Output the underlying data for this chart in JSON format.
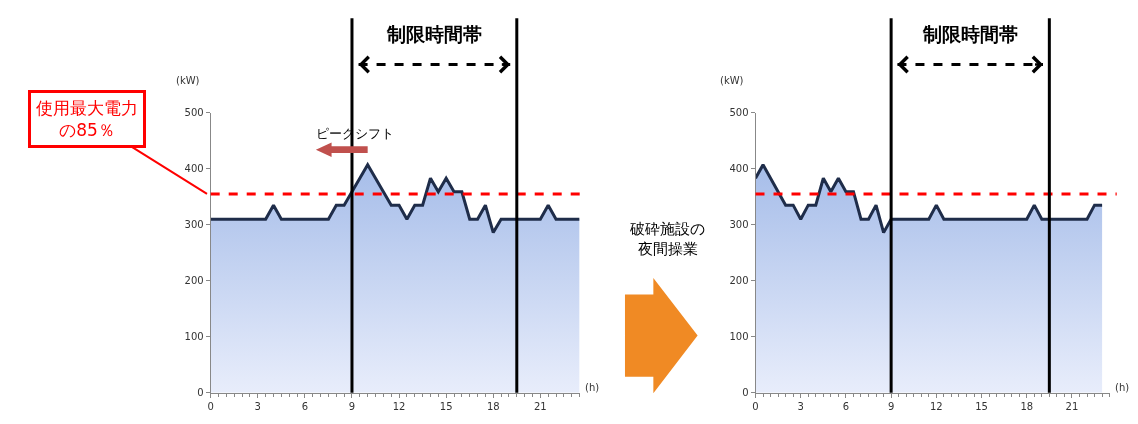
{
  "chart_data": [
    {
      "type": "area",
      "x": [
        0,
        0.5,
        1,
        1.5,
        2,
        2.5,
        3,
        3.5,
        4,
        4.5,
        5,
        5.5,
        6,
        6.5,
        7,
        7.5,
        8,
        8.5,
        9,
        9.5,
        10,
        10.5,
        11,
        11.5,
        12,
        12.5,
        13,
        13.5,
        14,
        14.5,
        15,
        15.5,
        16,
        16.5,
        17,
        17.5,
        18,
        18.5,
        19,
        19.5,
        20,
        20.5,
        21,
        21.5,
        22,
        22.5,
        23,
        23.5
      ],
      "values": [
        310,
        310,
        310,
        310,
        310,
        310,
        310,
        310,
        335,
        310,
        310,
        310,
        310,
        310,
        310,
        310,
        335,
        335,
        359,
        383,
        407,
        383,
        359,
        335,
        335,
        310,
        335,
        335,
        383,
        359,
        383,
        359,
        359,
        310,
        310,
        335,
        286,
        310,
        310,
        310,
        310,
        310,
        310,
        335,
        310,
        310,
        310,
        310
      ],
      "color": "#1f2d4a",
      "xlim": [
        0,
        23.5
      ],
      "ylim": [
        0,
        500
      ],
      "xticks": [
        0,
        3,
        6,
        9,
        12,
        15,
        18,
        21
      ],
      "yticks": [
        0,
        100,
        200,
        300,
        400,
        500
      ],
      "xlabel": "(h)",
      "ylabel": "(kW)",
      "ref_lines": [
        {
          "axis": "y",
          "value": 355,
          "label": "使用最大電力の85％",
          "color": "#ff0000",
          "line_style": "dashed"
        },
        {
          "axis": "x",
          "value": 9,
          "color": "#000000"
        },
        {
          "axis": "x",
          "value": 19.5,
          "color": "#000000"
        }
      ],
      "annotations": [
        "制限時間帯",
        {
          "text": "ピークシフト",
          "x": 10,
          "y": 407
        },
        "破砕施設の夜間操業"
      ]
    },
    {
      "type": "area",
      "x": [
        0,
        0.5,
        1,
        1.5,
        2,
        2.5,
        3,
        3.5,
        4,
        4.5,
        5,
        5.5,
        6,
        6.5,
        7,
        7.5,
        8,
        8.5,
        9,
        9.5,
        10,
        10.5,
        11,
        11.5,
        12,
        12.5,
        13,
        13.5,
        14,
        14.5,
        15,
        15.5,
        16,
        16.5,
        17,
        17.5,
        18,
        18.5,
        19,
        19.5,
        20,
        20.5,
        21,
        21.5,
        22,
        22.5,
        23
      ],
      "values": [
        383,
        407,
        383,
        359,
        335,
        335,
        310,
        335,
        335,
        383,
        359,
        383,
        359,
        359,
        310,
        310,
        335,
        286,
        310,
        310,
        310,
        310,
        310,
        310,
        335,
        310,
        310,
        310,
        310,
        310,
        310,
        310,
        310,
        310,
        310,
        310,
        310,
        335,
        310,
        310,
        310,
        310,
        310,
        310,
        310,
        335,
        335
      ],
      "color": "#1f2d4a",
      "xlim": [
        0,
        23.5
      ],
      "ylim": [
        0,
        500
      ],
      "xticks": [
        0,
        3,
        6,
        9,
        12,
        15,
        18,
        21
      ],
      "yticks": [
        0,
        100,
        200,
        300,
        400,
        500
      ],
      "xlabel": "(h)",
      "ylabel": "(kW)",
      "ref_lines": [
        {
          "axis": "y",
          "value": 355,
          "color": "#ff0000",
          "line_style": "dashed"
        },
        {
          "axis": "x",
          "value": 9,
          "color": "#000000"
        },
        {
          "axis": "x",
          "value": 19.5,
          "color": "#000000"
        }
      ],
      "annotations": [
        "制限時間帯"
      ]
    }
  ]
}
